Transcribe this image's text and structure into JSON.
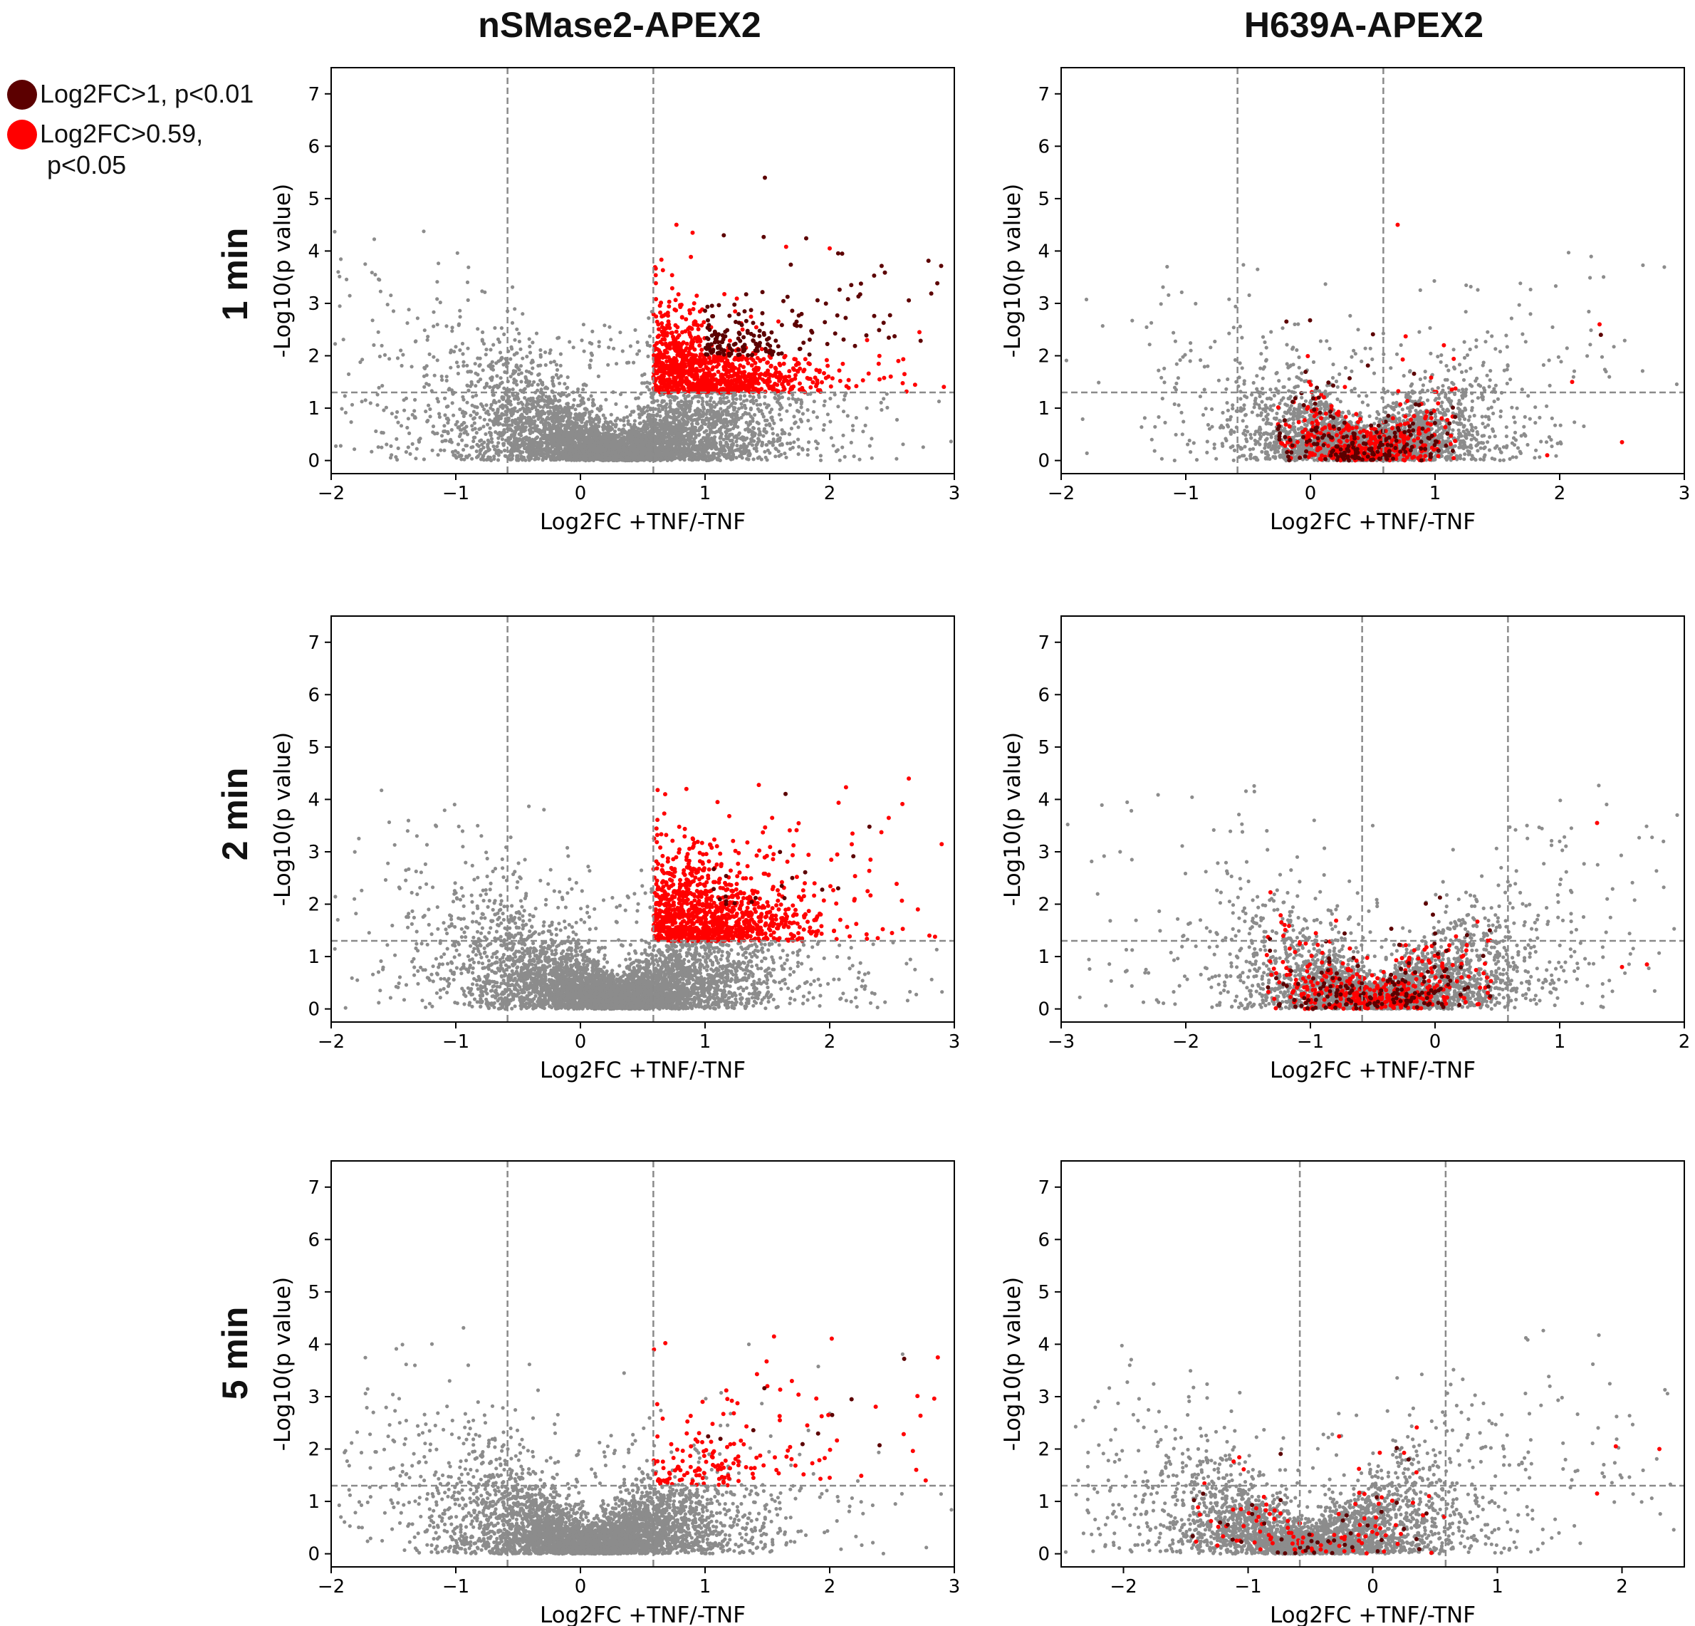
{
  "column_titles": [
    "nSMase2-APEX2",
    "H639A-APEX2"
  ],
  "row_labels": [
    "1 min",
    "2 min",
    "5 min"
  ],
  "legend": [
    {
      "label": "Log2FC>1, p<0.01",
      "color": "#5c0000"
    },
    {
      "label": "Log2FC>0.59,\n p<0.05",
      "color": "#ff0000"
    }
  ],
  "colors": {
    "not_significant": "#8c8c8c",
    "significant": "#ff0000",
    "highly_significant": "#5c0000",
    "threshold_line": "#8a8a8a"
  },
  "chart_data": [
    {
      "id": "p11",
      "type": "scatter",
      "row": "1 min",
      "column": "nSMase2-APEX2",
      "xlabel": "Log2FC +TNF/-TNF",
      "ylabel": "-Log10(p value)",
      "xlim": [
        -2,
        3
      ],
      "ylim": [
        -0.25,
        7.5
      ],
      "xticks": [
        -2,
        -1,
        0,
        1,
        2,
        3
      ],
      "xtick_labels": [
        "−2",
        "−1",
        "0",
        "1",
        "2",
        "3"
      ],
      "yticks": [
        0,
        1,
        2,
        3,
        4,
        5,
        6,
        7
      ],
      "ytick_labels": [
        "0",
        "1",
        "2",
        "3",
        "4",
        "5",
        "6",
        "7"
      ],
      "vlines": [
        -0.585,
        0.585
      ],
      "hline": 1.3,
      "center": 0.3,
      "spread": 0.9,
      "red_density": "high",
      "dark_density": "high",
      "n_points": 5200,
      "highlighted_points": [
        {
          "x": 1.48,
          "y": 5.4
        },
        {
          "x": 0.77,
          "y": 4.5
        },
        {
          "x": 0.9,
          "y": 4.35
        },
        {
          "x": 1.15,
          "y": 4.3
        },
        {
          "x": 1.65,
          "y": 4.08
        },
        {
          "x": 2.0,
          "y": 4.05
        },
        {
          "x": 2.1,
          "y": 3.95
        },
        {
          "x": 2.72,
          "y": 2.45
        },
        {
          "x": 2.3,
          "y": 2.3
        },
        {
          "x": 2.6,
          "y": 1.65
        },
        {
          "x": 2.4,
          "y": 1.55
        }
      ]
    },
    {
      "id": "p12",
      "type": "scatter",
      "row": "1 min",
      "column": "H639A-APEX2",
      "xlabel": "Log2FC +TNF/-TNF",
      "ylabel": "-Log10(p value)",
      "xlim": [
        -2,
        3
      ],
      "ylim": [
        -0.25,
        7.5
      ],
      "xticks": [
        -2,
        -1,
        0,
        1,
        2,
        3
      ],
      "xtick_labels": [
        "−2",
        "−1",
        "0",
        "1",
        "2",
        "3"
      ],
      "yticks": [
        0,
        1,
        2,
        3,
        4,
        5,
        6,
        7
      ],
      "ytick_labels": [
        "0",
        "1",
        "2",
        "3",
        "4",
        "5",
        "6",
        "7"
      ],
      "vlines": [
        -0.585,
        0.585
      ],
      "hline": 1.3,
      "center": 0.45,
      "spread": 0.6,
      "red_density": "mixed",
      "dark_density": "mixed",
      "n_points": 3800,
      "highlighted_points": [
        {
          "x": 0.7,
          "y": 4.5
        },
        {
          "x": -1.15,
          "y": 3.7
        },
        {
          "x": 2.32,
          "y": 2.6
        },
        {
          "x": 2.33,
          "y": 2.4
        },
        {
          "x": 2.1,
          "y": 1.5
        },
        {
          "x": 2.5,
          "y": 0.35
        },
        {
          "x": 1.9,
          "y": 0.1
        }
      ]
    },
    {
      "id": "p21",
      "type": "scatter",
      "row": "2 min",
      "column": "nSMase2-APEX2",
      "xlabel": "Log2FC +TNF/-TNF",
      "ylabel": "-Log10(p value)",
      "xlim": [
        -2,
        3
      ],
      "ylim": [
        -0.25,
        7.5
      ],
      "xticks": [
        -2,
        -1,
        0,
        1,
        2,
        3
      ],
      "xtick_labels": [
        "−2",
        "−1",
        "0",
        "1",
        "2",
        "3"
      ],
      "yticks": [
        0,
        1,
        2,
        3,
        4,
        5,
        6,
        7
      ],
      "ytick_labels": [
        "0",
        "1",
        "2",
        "3",
        "4",
        "5",
        "6",
        "7"
      ],
      "vlines": [
        -0.585,
        0.585
      ],
      "hline": 1.3,
      "center": 0.3,
      "spread": 0.85,
      "red_density": "high",
      "dark_density": "low",
      "n_points": 5000,
      "highlighted_points": [
        {
          "x": 0.85,
          "y": 4.2
        },
        {
          "x": 0.68,
          "y": 4.1
        },
        {
          "x": 1.1,
          "y": 3.95
        },
        {
          "x": 1.7,
          "y": 2.5
        },
        {
          "x": 1.8,
          "y": 2.4
        },
        {
          "x": 2.2,
          "y": 2.1
        },
        {
          "x": 2.8,
          "y": 1.4
        },
        {
          "x": 2.5,
          "y": 1.45
        },
        {
          "x": -1.45,
          "y": 2.3
        }
      ]
    },
    {
      "id": "p22",
      "type": "scatter",
      "row": "2 min",
      "column": "H639A-APEX2",
      "xlabel": "Log2FC +TNF/-TNF",
      "ylabel": "-Log10(p value)",
      "xlim": [
        -3,
        2
      ],
      "ylim": [
        -0.25,
        7.5
      ],
      "xticks": [
        -3,
        -2,
        -1,
        0,
        1,
        2
      ],
      "xtick_labels": [
        "−3",
        "−2",
        "−1",
        "0",
        "1",
        "2"
      ],
      "yticks": [
        0,
        1,
        2,
        3,
        4,
        5,
        6,
        7
      ],
      "ytick_labels": [
        "0",
        "1",
        "2",
        "3",
        "4",
        "5",
        "6",
        "7"
      ],
      "vlines": [
        -0.585,
        0.585
      ],
      "hline": 1.3,
      "center": -0.45,
      "spread": 0.75,
      "red_density": "mixed",
      "dark_density": "mixed",
      "n_points": 3600,
      "highlighted_points": [
        {
          "x": -1.45,
          "y": 4.15
        },
        {
          "x": -1.35,
          "y": 3.4
        },
        {
          "x": -0.97,
          "y": 3.6
        },
        {
          "x": -0.5,
          "y": 3.5
        },
        {
          "x": 1.3,
          "y": 3.55
        },
        {
          "x": 1.7,
          "y": 0.85
        },
        {
          "x": 1.5,
          "y": 0.8
        }
      ]
    },
    {
      "id": "p31",
      "type": "scatter",
      "row": "5 min",
      "column": "nSMase2-APEX2",
      "xlabel": "Log2FC +TNF/-TNF",
      "ylabel": "-Log10(p value)",
      "xlim": [
        -2,
        3
      ],
      "ylim": [
        -0.25,
        7.5
      ],
      "xticks": [
        -2,
        -1,
        0,
        1,
        2,
        3
      ],
      "xtick_labels": [
        "−2",
        "−1",
        "0",
        "1",
        "2",
        "3"
      ],
      "yticks": [
        0,
        1,
        2,
        3,
        4,
        5,
        6,
        7
      ],
      "ytick_labels": [
        "0",
        "1",
        "2",
        "3",
        "4",
        "5",
        "6",
        "7"
      ],
      "vlines": [
        -0.585,
        0.585
      ],
      "hline": 1.3,
      "center": 0.1,
      "spread": 0.8,
      "red_density": "medium",
      "dark_density": "low",
      "n_points": 4600,
      "highlighted_points": [
        {
          "x": 0.59,
          "y": 3.9
        },
        {
          "x": 1.5,
          "y": 3.2
        },
        {
          "x": 0.98,
          "y": 2.9
        },
        {
          "x": 2.02,
          "y": 2.65
        },
        {
          "x": 1.82,
          "y": 2.45
        },
        {
          "x": 1.6,
          "y": 2.55
        },
        {
          "x": 2.77,
          "y": 1.4
        },
        {
          "x": -1.05,
          "y": 3.3
        },
        {
          "x": -1.45,
          "y": 2.5
        },
        {
          "x": 0.35,
          "y": 3.45
        }
      ]
    },
    {
      "id": "p32",
      "type": "scatter",
      "row": "5 min",
      "column": "H639A-APEX2",
      "xlabel": "Log2FC +TNF/-TNF",
      "ylabel": "-Log10(p value)",
      "xlim": [
        -2.5,
        2.5
      ],
      "ylim": [
        -0.25,
        7.5
      ],
      "xticks": [
        -2,
        -1,
        0,
        1,
        2
      ],
      "xtick_labels": [
        "−2",
        "−1",
        "0",
        "1",
        "2"
      ],
      "yticks": [
        0,
        1,
        2,
        3,
        4,
        5,
        6,
        7
      ],
      "ytick_labels": [
        "0",
        "1",
        "2",
        "3",
        "4",
        "5",
        "6",
        "7"
      ],
      "vlines": [
        -0.585,
        0.585
      ],
      "hline": 1.3,
      "center": -0.5,
      "spread": 0.9,
      "red_density": "low",
      "dark_density": "low",
      "n_points": 3200,
      "highlighted_points": [
        {
          "x": -1.95,
          "y": 3.6
        },
        {
          "x": 1.8,
          "y": 1.15
        },
        {
          "x": -1.6,
          "y": 1.5
        },
        {
          "x": -1.4,
          "y": 2.0
        },
        {
          "x": 1.95,
          "y": 2.05
        },
        {
          "x": 2.3,
          "y": 2.0
        }
      ]
    }
  ]
}
